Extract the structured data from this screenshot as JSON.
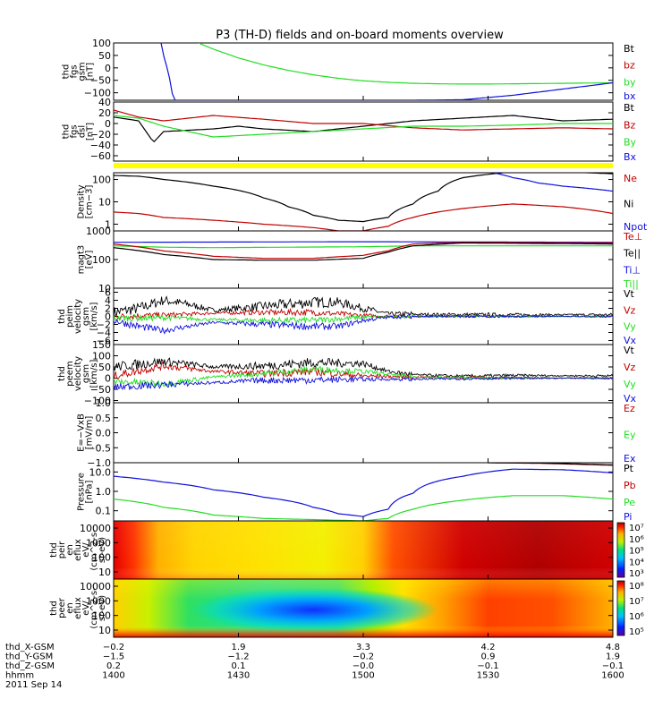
{
  "title": "P3 (TH-D) fields and on-board moments overview",
  "colors": {
    "black": "#000000",
    "red": "#c00000",
    "green": "#22dd22",
    "blue": "#1010dd",
    "yellow": "#ffff00"
  },
  "chart_data": [
    {
      "type": "line",
      "id": "p1",
      "ylabel": [
        "thd",
        "fgs",
        "gsm",
        "[nT]"
      ],
      "ylim": [
        -130,
        100
      ],
      "yticks": [
        "100",
        "50",
        "0",
        "−50",
        "−100"
      ],
      "legend": [
        {
          "label": "Bt",
          "color": "black"
        },
        {
          "label": "bz",
          "color": "red"
        },
        {
          "label": "by",
          "color": "green"
        },
        {
          "label": "bx",
          "color": "blue"
        }
      ],
      "series": [
        {
          "name": "by",
          "color": "green",
          "t": [
            0.17,
            0.2,
            0.25,
            0.3,
            0.35,
            0.4,
            0.45,
            0.5,
            0.55,
            0.6,
            0.65,
            0.7,
            0.75,
            0.8,
            0.85,
            0.9,
            1.0
          ],
          "y": [
            100,
            75,
            40,
            12,
            -10,
            -28,
            -42,
            -52,
            -58,
            -62,
            -64,
            -65,
            -65,
            -64,
            -63,
            -62,
            -60
          ]
        },
        {
          "name": "bx",
          "color": "blue",
          "t": [
            0.095,
            0.1,
            0.11,
            0.12,
            0.6,
            0.7,
            0.8,
            0.9,
            1.0
          ],
          "y": [
            100,
            50,
            -20,
            -130,
            -130,
            -128,
            -110,
            -85,
            -60
          ]
        }
      ]
    },
    {
      "type": "line",
      "id": "p2",
      "ylabel": [
        "thd",
        "fgs",
        "dsl",
        "[nT]"
      ],
      "ylim": [
        -70,
        40
      ],
      "yticks": [
        "40",
        "20",
        "0",
        "−20",
        "−40",
        "−60"
      ],
      "legend": [
        {
          "label": "Bt",
          "color": "black"
        },
        {
          "label": "Bz",
          "color": "red"
        },
        {
          "label": "By",
          "color": "green"
        },
        {
          "label": "Bx",
          "color": "blue"
        }
      ],
      "series": [
        {
          "name": "Bt",
          "color": "black",
          "t": [
            0,
            0.05,
            0.08,
            0.1,
            0.2,
            0.25,
            0.3,
            0.4,
            0.5,
            0.6,
            0.7,
            0.8,
            0.9,
            1.0
          ],
          "y": [
            12,
            5,
            -35,
            -15,
            -10,
            -5,
            -10,
            -15,
            -5,
            5,
            10,
            15,
            5,
            8
          ]
        },
        {
          "name": "Bz",
          "color": "red",
          "t": [
            0,
            0.05,
            0.1,
            0.2,
            0.3,
            0.4,
            0.5,
            0.6,
            0.7,
            0.8,
            0.9,
            1.0
          ],
          "y": [
            25,
            12,
            5,
            15,
            8,
            0,
            0,
            -8,
            -12,
            -10,
            -8,
            -10
          ]
        },
        {
          "name": "By",
          "color": "green",
          "t": [
            0,
            0.05,
            0.1,
            0.2,
            0.3,
            0.4,
            0.5,
            0.6,
            0.7,
            0.8,
            0.9,
            1.0
          ],
          "y": [
            15,
            10,
            -5,
            -25,
            -20,
            -15,
            -10,
            -5,
            -5,
            -3,
            0,
            0
          ]
        }
      ]
    },
    {
      "type": "line",
      "id": "p3",
      "ylabel": [
        "Density",
        "[cm−3]"
      ],
      "log": true,
      "ylim": [
        0.5,
        200
      ],
      "yticks": [
        "100",
        "10",
        "1"
      ],
      "legend": [
        {
          "label": "Ne",
          "color": "red"
        },
        {
          "label": "Ni",
          "color": "black"
        },
        {
          "label": "Npot",
          "color": "blue"
        }
      ],
      "series": [
        {
          "name": "Ni",
          "color": "black",
          "t": [
            0,
            0.05,
            0.1,
            0.2,
            0.3,
            0.35,
            0.4,
            0.45,
            0.5,
            0.55,
            0.6,
            0.65,
            0.7,
            0.8,
            0.9,
            1.0
          ],
          "y": [
            150,
            140,
            100,
            50,
            15,
            6,
            2.5,
            1.5,
            1.3,
            2,
            8,
            30,
            120,
            220,
            220,
            180
          ]
        },
        {
          "name": "Ne",
          "color": "red",
          "t": [
            0,
            0.05,
            0.1,
            0.2,
            0.3,
            0.4,
            0.45,
            0.5,
            0.55,
            0.6,
            0.7,
            0.8,
            0.9,
            1.0
          ],
          "y": [
            3.5,
            3,
            2,
            1.5,
            1,
            0.7,
            0.5,
            0.5,
            0.8,
            2,
            5,
            8,
            6,
            3
          ]
        },
        {
          "name": "Npot",
          "color": "blue",
          "t": [
            0.76,
            0.8,
            0.85,
            0.9,
            0.95,
            1.0
          ],
          "y": [
            200,
            120,
            70,
            50,
            40,
            30
          ]
        }
      ]
    },
    {
      "type": "line",
      "id": "p4",
      "ylabel": [
        "magt3",
        "[eV]"
      ],
      "log": true,
      "ylim": [
        10,
        1000
      ],
      "yticks": [
        "1000",
        "100",
        "10"
      ],
      "legend": [
        {
          "label": "Te⊥",
          "color": "red"
        },
        {
          "label": "Te||",
          "color": "black"
        },
        {
          "label": "Ti⊥",
          "color": "blue"
        },
        {
          "label": "Ti||",
          "color": "green"
        }
      ],
      "series": [
        {
          "name": "Ti⊥",
          "color": "blue",
          "t": [
            0,
            0.5,
            1.0
          ],
          "y": [
            400,
            420,
            400
          ]
        },
        {
          "name": "Ti||",
          "color": "green",
          "t": [
            0,
            0.1,
            0.2,
            0.5,
            0.6,
            1.0
          ],
          "y": [
            300,
            270,
            260,
            280,
            300,
            300
          ]
        },
        {
          "name": "Te⊥",
          "color": "red",
          "t": [
            0,
            0.1,
            0.2,
            0.3,
            0.4,
            0.5,
            0.55,
            0.6,
            0.7,
            1.0
          ],
          "y": [
            350,
            200,
            130,
            110,
            110,
            140,
            200,
            350,
            400,
            380
          ]
        },
        {
          "name": "Te||",
          "color": "black",
          "t": [
            0,
            0.1,
            0.2,
            0.3,
            0.4,
            0.5,
            0.55,
            0.6,
            0.7,
            1.0
          ],
          "y": [
            260,
            150,
            100,
            95,
            95,
            110,
            180,
            300,
            380,
            350
          ]
        }
      ]
    },
    {
      "type": "line",
      "id": "p5",
      "ylabel": [
        "thd",
        "peim",
        "velocity",
        "gsm",
        "[km/s]"
      ],
      "ylim": [
        -7,
        7
      ],
      "yticks": [
        "6",
        "4",
        "2",
        "0",
        "−2",
        "−4",
        "−6"
      ],
      "legend": [
        {
          "label": "Vt",
          "color": "black"
        },
        {
          "label": "Vz",
          "color": "red"
        },
        {
          "label": "Vy",
          "color": "green"
        },
        {
          "label": "Vx",
          "color": "blue"
        }
      ],
      "series": [
        {
          "name": "Vt",
          "color": "black",
          "noise": 1.4,
          "t": [
            0,
            0.05,
            0.1,
            0.15,
            0.2,
            0.3,
            0.4,
            0.45,
            0.5,
            0.55,
            0.6,
            0.7,
            0.8,
            1.0
          ],
          "y": [
            1,
            2,
            4,
            3,
            1.5,
            2.5,
            3.5,
            3.5,
            2,
            0.6,
            0.5,
            0.4,
            0.4,
            0.4
          ]
        },
        {
          "name": "Vz",
          "color": "red",
          "noise": 0.8,
          "t": [
            0,
            0.1,
            0.2,
            0.3,
            0.4,
            0.5,
            0.6,
            1.0
          ],
          "y": [
            0,
            0.3,
            0.8,
            1,
            1,
            0.2,
            0,
            0
          ]
        },
        {
          "name": "Vy",
          "color": "green",
          "noise": 0.8,
          "t": [
            0,
            0.1,
            0.2,
            0.3,
            0.4,
            0.5,
            0.6,
            1.0
          ],
          "y": [
            -0.5,
            -0.3,
            -0.8,
            -1,
            -1,
            -0.2,
            0,
            0
          ]
        },
        {
          "name": "Vx",
          "color": "blue",
          "noise": 0.9,
          "t": [
            0,
            0.05,
            0.1,
            0.15,
            0.2,
            0.3,
            0.4,
            0.45,
            0.5,
            0.55,
            0.6,
            1.0
          ],
          "y": [
            -1,
            -2.5,
            -3.5,
            -2.5,
            -1.5,
            -2,
            -2.5,
            -2.5,
            -1,
            -0.2,
            0,
            0
          ]
        }
      ]
    },
    {
      "type": "line",
      "id": "p6",
      "ylabel": [
        "thd",
        "peem",
        "velocity",
        "gsm",
        "[km/s]"
      ],
      "ylim": [
        -110,
        150
      ],
      "yticks": [
        "150",
        "100",
        "50",
        "0",
        "−50",
        "−100"
      ],
      "legend": [
        {
          "label": "Vt",
          "color": "black"
        },
        {
          "label": "Vz",
          "color": "red"
        },
        {
          "label": "Vy",
          "color": "green"
        },
        {
          "label": "Vx",
          "color": "blue"
        }
      ],
      "series": [
        {
          "name": "Vt",
          "color": "black",
          "noise": 22,
          "t": [
            0,
            0.1,
            0.2,
            0.3,
            0.4,
            0.5,
            0.55,
            0.6,
            0.7,
            0.8,
            1.0
          ],
          "y": [
            50,
            75,
            50,
            55,
            70,
            65,
            30,
            15,
            8,
            12,
            10
          ]
        },
        {
          "name": "Vz",
          "color": "red",
          "noise": 18,
          "t": [
            0,
            0.1,
            0.2,
            0.3,
            0.4,
            0.5,
            0.6,
            0.8,
            1.0
          ],
          "y": [
            10,
            55,
            30,
            20,
            30,
            10,
            5,
            0,
            0
          ]
        },
        {
          "name": "Vy",
          "color": "green",
          "noise": 16,
          "t": [
            0,
            0.1,
            0.2,
            0.3,
            0.4,
            0.5,
            0.6,
            0.8,
            1.0
          ],
          "y": [
            -15,
            -25,
            5,
            20,
            40,
            30,
            5,
            0,
            0
          ]
        },
        {
          "name": "Vx",
          "color": "blue",
          "noise": 16,
          "t": [
            0,
            0.1,
            0.2,
            0.3,
            0.4,
            0.5,
            0.6,
            0.8,
            1.0
          ],
          "y": [
            -40,
            -30,
            -20,
            -10,
            -8,
            -5,
            -5,
            0,
            0
          ]
        }
      ]
    },
    {
      "type": "line",
      "id": "p7",
      "ylabel": [
        "E=−VxB",
        "[mV/m]"
      ],
      "ylim": [
        -1,
        1
      ],
      "yticks": [
        "1.0",
        "0.5",
        "0.0",
        "−0.5",
        "−1.0"
      ],
      "legend": [
        {
          "label": "Ez",
          "color": "red"
        },
        {
          "label": "Ey",
          "color": "green"
        },
        {
          "label": "Ex",
          "color": "blue"
        }
      ],
      "series": []
    },
    {
      "type": "line",
      "id": "p8",
      "ylabel": [
        "Pressure",
        "[nPa]"
      ],
      "log": true,
      "ylim": [
        0.03,
        30
      ],
      "yticks": [
        "10.0",
        "1.0",
        "0.1"
      ],
      "legend": [
        {
          "label": "Pt",
          "color": "black"
        },
        {
          "label": "Pb",
          "color": "red"
        },
        {
          "label": "Pe",
          "color": "green"
        },
        {
          "label": "Pi",
          "color": "blue"
        }
      ],
      "series": [
        {
          "name": "Pi",
          "color": "blue",
          "t": [
            0,
            0.1,
            0.2,
            0.3,
            0.4,
            0.45,
            0.5,
            0.55,
            0.6,
            0.7,
            0.8,
            0.9,
            1.0
          ],
          "y": [
            6,
            3,
            1.2,
            0.5,
            0.15,
            0.07,
            0.05,
            0.12,
            0.8,
            6,
            14,
            13,
            9
          ]
        },
        {
          "name": "Pe",
          "color": "green",
          "t": [
            0,
            0.1,
            0.2,
            0.3,
            0.4,
            0.5,
            0.55,
            0.6,
            0.7,
            0.8,
            0.9,
            1.0
          ],
          "y": [
            0.4,
            0.15,
            0.06,
            0.04,
            0.035,
            0.03,
            0.04,
            0.12,
            0.35,
            0.6,
            0.6,
            0.4
          ]
        },
        {
          "name": "Pb",
          "color": "red",
          "t": [
            0.75,
            0.85,
            1.0
          ],
          "y": [
            30,
            28,
            22
          ]
        },
        {
          "name": "Pt",
          "color": "black",
          "t": [
            0.75,
            0.85,
            1.0
          ],
          "y": [
            30,
            29,
            23
          ]
        }
      ]
    },
    {
      "type": "heatmap",
      "id": "p9",
      "ylabel": [
        "thd",
        "peir",
        "en",
        "eflux",
        "eV/",
        "(cm^2-s-",
        "sr-eV)"
      ],
      "yticks": [
        "10000",
        "1000",
        "100",
        "10"
      ],
      "colorbar": [
        "10⁷",
        "10⁶",
        "10⁵",
        "10⁴",
        "10³"
      ]
    },
    {
      "type": "heatmap",
      "id": "p10",
      "ylabel": [
        "thd",
        "peer",
        "en",
        "eflux",
        "eV/",
        "(cm^2-s-",
        "sr-eV)"
      ],
      "yticks": [
        "10000",
        "1000",
        "100",
        "10"
      ],
      "colorbar": [
        "10⁸",
        "10⁷",
        "10⁶",
        "10⁵"
      ]
    }
  ],
  "xaxis": {
    "row_labels": [
      "thd_X-GSM",
      "thd_Y-GSM",
      "thd_Z-GSM",
      "hhmm",
      "2011 Sep 14"
    ],
    "ticks": [
      {
        "x": "−0.2",
        "y": "−1.5",
        "z": "0.2",
        "hhmm": "1400"
      },
      {
        "x": "1.9",
        "y": "−1.2",
        "z": "0.1",
        "hhmm": "1430"
      },
      {
        "x": "3.3",
        "y": "−0.2",
        "z": "−0.0",
        "hhmm": "1500"
      },
      {
        "x": "4.2",
        "y": "0.9",
        "z": "−0.1",
        "hhmm": "1530"
      },
      {
        "x": "4.8",
        "y": "1.9",
        "z": "−0.1",
        "hhmm": "1600"
      }
    ]
  }
}
